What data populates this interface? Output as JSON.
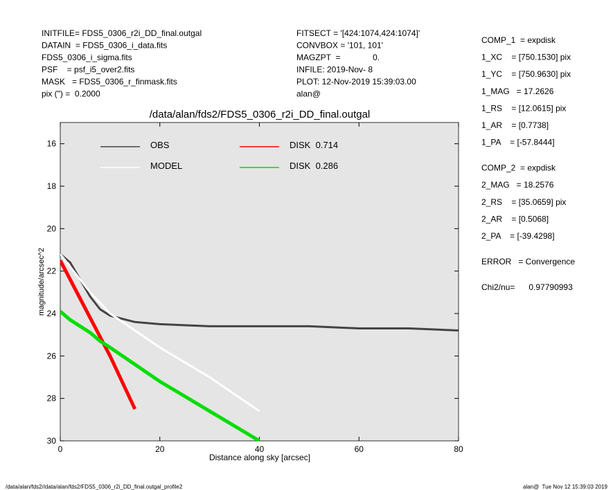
{
  "header": {
    "left": [
      "INITFILE= FDS5_0306_r2i_DD_final.outgal",
      "DATAIN  = FDS5_0306_i_data.fits",
      "FDS5_0306_i_sigma.fits",
      "PSF    = psf_i5_over2.fits",
      "MASK   = FDS5_0306_r_finmask.fits",
      "pix (\") =  0.2000"
    ],
    "middle": [
      "FITSECT = '[424:1074,424:1074]'",
      "CONVBOX = '101, 101'",
      "MAGZPT  =              0.",
      "INFILE: 2019-Nov- 8",
      "PLOT: 12-Nov-2019 15:39:03.00",
      "alan@"
    ],
    "right": [
      [
        "COMP_1  = expdisk",
        "1_XC    = [750.1530] pix",
        "1_YC    = [750.9630] pix",
        "1_MAG   = 17.2626",
        "1_RS    = [12.0615] pix",
        "1_AR    = [0.7738]",
        "1_PA    = [-57.8444]"
      ],
      [
        "COMP_2  = expdisk",
        "2_MAG   = 18.2576",
        "2_RS    = [35.0659] pix",
        "2_AR    = [0.5068]",
        "2_PA    = [-39.4298]"
      ],
      [
        "ERROR   = Convergence"
      ],
      [
        "Chi2/nu=      0.97790993"
      ]
    ]
  },
  "footer": {
    "left": "/data/alan/fds2//data/alan/fds2/FDS5_0306_r2i_DD_final.outgal_profile2",
    "right": "alan@  Tue Nov 12 15:39:03 2019"
  },
  "chart_data": {
    "type": "line",
    "title": "/data/alan/fds2/FDS5_0306_r2i_DD_final.outgal",
    "xlabel": "Distance along sky [arcsec]",
    "ylabel": "magnitude/arcsec^2",
    "x": [
      0,
      2,
      4,
      6,
      8,
      10,
      15,
      20,
      30,
      40,
      50,
      60,
      70,
      80
    ],
    "series": [
      {
        "name": "OBS",
        "color": "#444444",
        "values": [
          21.2,
          21.6,
          22.4,
          23.2,
          23.8,
          24.1,
          24.4,
          24.5,
          24.6,
          24.6,
          24.6,
          24.7,
          24.7,
          24.8
        ]
      },
      {
        "name": "MODEL",
        "color": "#ffffff",
        "values": [
          21.2,
          21.8,
          22.4,
          23.0,
          23.5,
          24.0,
          24.8,
          25.6,
          27.0,
          28.6,
          null,
          null,
          null,
          null
        ]
      },
      {
        "name": "DISK  0.714",
        "color": "#ff0000",
        "values": [
          21.5,
          22.4,
          23.3,
          24.2,
          25.1,
          26.0,
          28.5,
          null,
          null,
          null,
          null,
          null,
          null,
          null
        ]
      },
      {
        "name": "DISK  0.286",
        "color": "#00dd00",
        "values": [
          23.9,
          24.3,
          24.6,
          24.9,
          25.3,
          25.6,
          26.4,
          27.2,
          28.6,
          30.0,
          null,
          null,
          null,
          null
        ]
      }
    ],
    "xlim": [
      0,
      80
    ],
    "xticks": [
      0,
      20,
      40,
      60,
      80
    ],
    "ylim": [
      30,
      15
    ],
    "yticks": [
      16,
      18,
      20,
      22,
      24,
      26,
      28,
      30
    ]
  }
}
